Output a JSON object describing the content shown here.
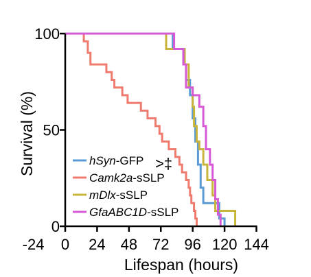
{
  "chart_data": {
    "type": "line",
    "step": true,
    "xlabel": "Lifespan (hours)",
    "ylabel": "Survival (%)",
    "xlim": [
      -24,
      144
    ],
    "ylim": [
      0,
      100
    ],
    "xticks": [
      {
        "value": -24,
        "label": "-24"
      },
      {
        "value": 0,
        "label": "0"
      },
      {
        "value": 24,
        "label": "24"
      },
      {
        "value": 48,
        "label": "48"
      },
      {
        "value": 72,
        "label": "72"
      },
      {
        "value": 96,
        "label": "96"
      },
      {
        "value": 120,
        "label": "120"
      },
      {
        "value": 144,
        "label": "144"
      }
    ],
    "yticks": [
      {
        "value": 0,
        "label": "0"
      },
      {
        "value": 50,
        "label": "50"
      },
      {
        "value": 100,
        "label": "100"
      }
    ],
    "grid": false,
    "legend_position": "bottom-left",
    "annotation": ">‡",
    "series": [
      {
        "key": "camk2a",
        "name_italic": "Camk2a",
        "name_rest": "-sSLP",
        "color": "#ef7b6f",
        "points": [
          [
            0,
            100
          ],
          [
            14,
            100
          ],
          [
            14,
            96
          ],
          [
            17,
            96
          ],
          [
            17,
            90
          ],
          [
            19,
            90
          ],
          [
            19,
            84
          ],
          [
            31,
            84
          ],
          [
            31,
            80
          ],
          [
            35,
            80
          ],
          [
            35,
            76
          ],
          [
            37,
            76
          ],
          [
            37,
            72
          ],
          [
            43,
            72
          ],
          [
            43,
            68
          ],
          [
            47,
            68
          ],
          [
            47,
            64
          ],
          [
            57,
            64
          ],
          [
            57,
            60
          ],
          [
            62,
            60
          ],
          [
            62,
            56
          ],
          [
            68,
            56
          ],
          [
            68,
            52
          ],
          [
            71,
            52
          ],
          [
            71,
            48
          ],
          [
            73,
            48
          ],
          [
            73,
            44
          ],
          [
            78,
            44
          ],
          [
            78,
            40
          ],
          [
            83,
            40
          ],
          [
            83,
            36
          ],
          [
            86,
            36
          ],
          [
            86,
            32
          ],
          [
            88,
            32
          ],
          [
            88,
            28
          ],
          [
            91,
            28
          ],
          [
            91,
            24
          ],
          [
            93,
            24
          ],
          [
            93,
            20
          ],
          [
            94,
            20
          ],
          [
            94,
            16
          ],
          [
            95,
            16
          ],
          [
            95,
            12
          ],
          [
            97,
            12
          ],
          [
            97,
            8
          ],
          [
            98,
            8
          ],
          [
            98,
            4
          ],
          [
            99,
            4
          ],
          [
            99,
            0
          ]
        ]
      },
      {
        "key": "hsyn",
        "name_italic": "hSyn",
        "name_rest": "-GFP",
        "color": "#5a9bd5",
        "points": [
          [
            0,
            100
          ],
          [
            81,
            100
          ],
          [
            81,
            92
          ],
          [
            89,
            92
          ],
          [
            89,
            84
          ],
          [
            91,
            84
          ],
          [
            91,
            76
          ],
          [
            94,
            76
          ],
          [
            94,
            68
          ],
          [
            96,
            68
          ],
          [
            96,
            56
          ],
          [
            98,
            56
          ],
          [
            98,
            44
          ],
          [
            100,
            44
          ],
          [
            100,
            32
          ],
          [
            102,
            32
          ],
          [
            102,
            20
          ],
          [
            104,
            20
          ],
          [
            104,
            12
          ],
          [
            116,
            12
          ],
          [
            116,
            4
          ],
          [
            120,
            4
          ],
          [
            120,
            0
          ]
        ]
      },
      {
        "key": "mdlx",
        "name_italic": "mDlx",
        "name_rest": "-sSLP",
        "color": "#c8b43a",
        "points": [
          [
            0,
            100
          ],
          [
            76,
            100
          ],
          [
            76,
            92
          ],
          [
            90,
            92
          ],
          [
            90,
            84
          ],
          [
            93,
            84
          ],
          [
            93,
            72
          ],
          [
            96,
            72
          ],
          [
            96,
            62
          ],
          [
            97,
            62
          ],
          [
            97,
            52
          ],
          [
            99,
            52
          ],
          [
            99,
            44
          ],
          [
            101,
            44
          ],
          [
            101,
            40
          ],
          [
            104,
            40
          ],
          [
            104,
            32
          ],
          [
            107,
            32
          ],
          [
            107,
            24
          ],
          [
            111,
            24
          ],
          [
            111,
            16
          ],
          [
            113,
            16
          ],
          [
            113,
            8
          ],
          [
            128,
            8
          ],
          [
            128,
            0
          ]
        ]
      },
      {
        "key": "gfaabc1d",
        "name_italic": "GfaABC1D",
        "name_rest": "-sSLP",
        "color": "#d65ad6",
        "points": [
          [
            0,
            100
          ],
          [
            82,
            100
          ],
          [
            82,
            92
          ],
          [
            89,
            92
          ],
          [
            89,
            84
          ],
          [
            91,
            84
          ],
          [
            91,
            72
          ],
          [
            96,
            72
          ],
          [
            96,
            68
          ],
          [
            101,
            68
          ],
          [
            101,
            62
          ],
          [
            104,
            62
          ],
          [
            104,
            52
          ],
          [
            106,
            52
          ],
          [
            106,
            40
          ],
          [
            109,
            40
          ],
          [
            109,
            32
          ],
          [
            111,
            32
          ],
          [
            111,
            24
          ],
          [
            113,
            24
          ],
          [
            113,
            14
          ],
          [
            115,
            14
          ],
          [
            115,
            6
          ],
          [
            117,
            6
          ],
          [
            117,
            0
          ]
        ]
      }
    ],
    "legend_order": [
      "hsyn",
      "camk2a",
      "mdlx",
      "gfaabc1d"
    ]
  }
}
